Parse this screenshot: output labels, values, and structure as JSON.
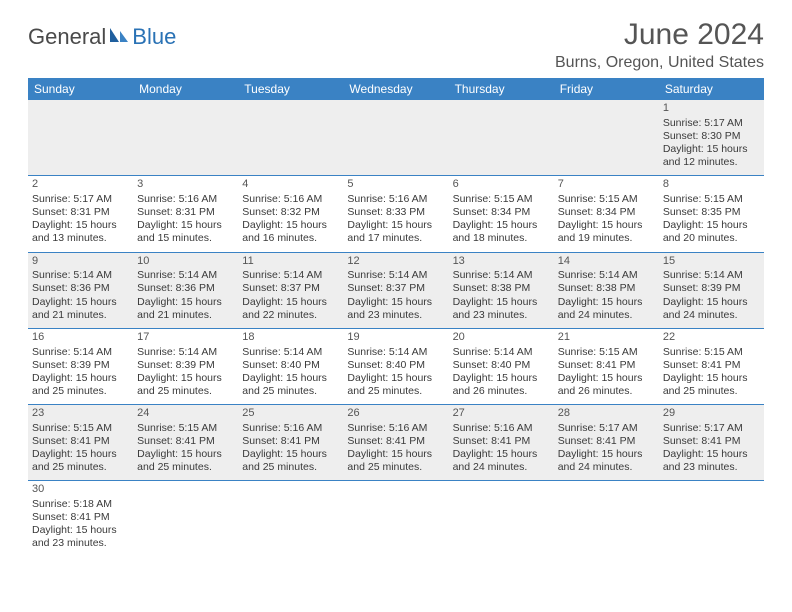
{
  "brand": {
    "part1": "General",
    "part2": "Blue"
  },
  "title": "June 2024",
  "location": "Burns, Oregon, United States",
  "weekdays": [
    "Sunday",
    "Monday",
    "Tuesday",
    "Wednesday",
    "Thursday",
    "Friday",
    "Saturday"
  ],
  "colors": {
    "header_bg": "#3a82c4",
    "header_fg": "#ffffff",
    "row_border": "#3a82c4",
    "even_row_bg": "#eeeeee",
    "odd_row_bg": "#ffffff",
    "brand_blue": "#2a72b5",
    "text_gray": "#555555"
  },
  "weeks": [
    {
      "shade": "even",
      "days": [
        null,
        null,
        null,
        null,
        null,
        null,
        {
          "n": "1",
          "sunrise": "5:17 AM",
          "sunset": "8:30 PM",
          "daylight": "15 hours and 12 minutes."
        }
      ]
    },
    {
      "shade": "odd",
      "days": [
        {
          "n": "2",
          "sunrise": "5:17 AM",
          "sunset": "8:31 PM",
          "daylight": "15 hours and 13 minutes."
        },
        {
          "n": "3",
          "sunrise": "5:16 AM",
          "sunset": "8:31 PM",
          "daylight": "15 hours and 15 minutes."
        },
        {
          "n": "4",
          "sunrise": "5:16 AM",
          "sunset": "8:32 PM",
          "daylight": "15 hours and 16 minutes."
        },
        {
          "n": "5",
          "sunrise": "5:16 AM",
          "sunset": "8:33 PM",
          "daylight": "15 hours and 17 minutes."
        },
        {
          "n": "6",
          "sunrise": "5:15 AM",
          "sunset": "8:34 PM",
          "daylight": "15 hours and 18 minutes."
        },
        {
          "n": "7",
          "sunrise": "5:15 AM",
          "sunset": "8:34 PM",
          "daylight": "15 hours and 19 minutes."
        },
        {
          "n": "8",
          "sunrise": "5:15 AM",
          "sunset": "8:35 PM",
          "daylight": "15 hours and 20 minutes."
        }
      ]
    },
    {
      "shade": "even",
      "days": [
        {
          "n": "9",
          "sunrise": "5:14 AM",
          "sunset": "8:36 PM",
          "daylight": "15 hours and 21 minutes."
        },
        {
          "n": "10",
          "sunrise": "5:14 AM",
          "sunset": "8:36 PM",
          "daylight": "15 hours and 21 minutes."
        },
        {
          "n": "11",
          "sunrise": "5:14 AM",
          "sunset": "8:37 PM",
          "daylight": "15 hours and 22 minutes."
        },
        {
          "n": "12",
          "sunrise": "5:14 AM",
          "sunset": "8:37 PM",
          "daylight": "15 hours and 23 minutes."
        },
        {
          "n": "13",
          "sunrise": "5:14 AM",
          "sunset": "8:38 PM",
          "daylight": "15 hours and 23 minutes."
        },
        {
          "n": "14",
          "sunrise": "5:14 AM",
          "sunset": "8:38 PM",
          "daylight": "15 hours and 24 minutes."
        },
        {
          "n": "15",
          "sunrise": "5:14 AM",
          "sunset": "8:39 PM",
          "daylight": "15 hours and 24 minutes."
        }
      ]
    },
    {
      "shade": "odd",
      "days": [
        {
          "n": "16",
          "sunrise": "5:14 AM",
          "sunset": "8:39 PM",
          "daylight": "15 hours and 25 minutes."
        },
        {
          "n": "17",
          "sunrise": "5:14 AM",
          "sunset": "8:39 PM",
          "daylight": "15 hours and 25 minutes."
        },
        {
          "n": "18",
          "sunrise": "5:14 AM",
          "sunset": "8:40 PM",
          "daylight": "15 hours and 25 minutes."
        },
        {
          "n": "19",
          "sunrise": "5:14 AM",
          "sunset": "8:40 PM",
          "daylight": "15 hours and 25 minutes."
        },
        {
          "n": "20",
          "sunrise": "5:14 AM",
          "sunset": "8:40 PM",
          "daylight": "15 hours and 26 minutes."
        },
        {
          "n": "21",
          "sunrise": "5:15 AM",
          "sunset": "8:41 PM",
          "daylight": "15 hours and 26 minutes."
        },
        {
          "n": "22",
          "sunrise": "5:15 AM",
          "sunset": "8:41 PM",
          "daylight": "15 hours and 25 minutes."
        }
      ]
    },
    {
      "shade": "even",
      "days": [
        {
          "n": "23",
          "sunrise": "5:15 AM",
          "sunset": "8:41 PM",
          "daylight": "15 hours and 25 minutes."
        },
        {
          "n": "24",
          "sunrise": "5:15 AM",
          "sunset": "8:41 PM",
          "daylight": "15 hours and 25 minutes."
        },
        {
          "n": "25",
          "sunrise": "5:16 AM",
          "sunset": "8:41 PM",
          "daylight": "15 hours and 25 minutes."
        },
        {
          "n": "26",
          "sunrise": "5:16 AM",
          "sunset": "8:41 PM",
          "daylight": "15 hours and 25 minutes."
        },
        {
          "n": "27",
          "sunrise": "5:16 AM",
          "sunset": "8:41 PM",
          "daylight": "15 hours and 24 minutes."
        },
        {
          "n": "28",
          "sunrise": "5:17 AM",
          "sunset": "8:41 PM",
          "daylight": "15 hours and 24 minutes."
        },
        {
          "n": "29",
          "sunrise": "5:17 AM",
          "sunset": "8:41 PM",
          "daylight": "15 hours and 23 minutes."
        }
      ]
    },
    {
      "shade": "odd",
      "last": true,
      "days": [
        {
          "n": "30",
          "sunrise": "5:18 AM",
          "sunset": "8:41 PM",
          "daylight": "15 hours and 23 minutes."
        },
        null,
        null,
        null,
        null,
        null,
        null
      ]
    }
  ],
  "labels": {
    "sunrise_prefix": "Sunrise: ",
    "sunset_prefix": "Sunset: ",
    "daylight_prefix": "Daylight: "
  }
}
